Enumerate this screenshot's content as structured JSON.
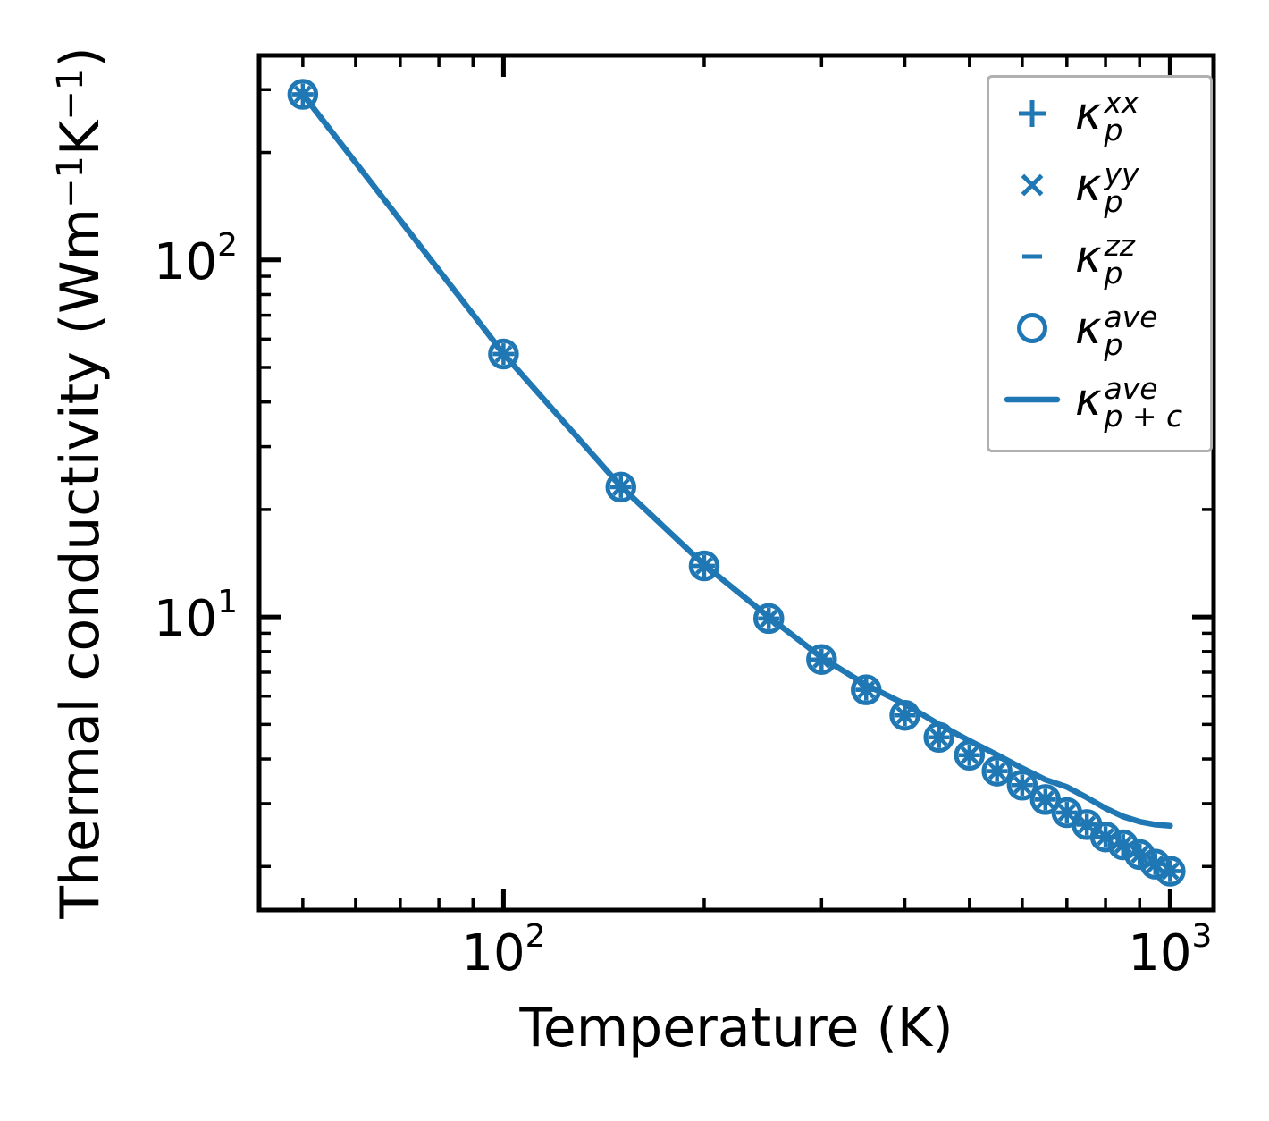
{
  "figure": {
    "background": "#ffffff",
    "accent_color": "#1f77b4",
    "axis_color": "#000000",
    "legend_border_color": "#b0b0b0"
  },
  "axes": {
    "xlabel": "Temperature (K)",
    "ylabel_parts": [
      {
        "t": "Thermal conductivity (Wm"
      },
      {
        "t": "−1",
        "sup": true
      },
      {
        "t": "K"
      },
      {
        "t": "−1",
        "sup": true
      },
      {
        "t": ")"
      }
    ],
    "xscale": "log",
    "yscale": "log",
    "xlim": [
      43,
      1162
    ],
    "ylim": [
      1.51,
      374
    ],
    "x_major_ticks": [
      {
        "value": 100,
        "base": "10",
        "exp": "2"
      },
      {
        "value": 1000,
        "base": "10",
        "exp": "3"
      }
    ],
    "y_major_ticks": [
      {
        "value": 100,
        "base": "10",
        "exp": "2"
      },
      {
        "value": 10,
        "base": "10",
        "exp": "1"
      }
    ]
  },
  "chart_data": {
    "type": "line",
    "title": "",
    "xlabel": "Temperature (K)",
    "ylabel": "Thermal conductivity (W m^-1 K^-1)",
    "xscale": "log",
    "yscale": "log",
    "xlim": [
      43,
      1162
    ],
    "ylim": [
      1.51,
      374
    ],
    "grid": false,
    "legend_position": "upper right",
    "x": [
      50,
      100,
      150,
      200,
      250,
      300,
      350,
      400,
      450,
      500,
      550,
      600,
      650,
      700,
      750,
      800,
      850,
      900,
      950,
      1000
    ],
    "series": [
      {
        "name": "kappa_p_xx",
        "marker": "plus",
        "line": false,
        "values": [
          291,
          54.5,
          23.1,
          13.9,
          9.9,
          7.6,
          6.25,
          5.3,
          4.6,
          4.1,
          3.7,
          3.38,
          3.08,
          2.83,
          2.62,
          2.42,
          2.3,
          2.16,
          2.03,
          1.94
        ]
      },
      {
        "name": "kappa_p_yy",
        "marker": "cross",
        "line": false,
        "values": [
          291,
          54.5,
          23.1,
          13.9,
          9.9,
          7.6,
          6.25,
          5.3,
          4.6,
          4.1,
          3.7,
          3.38,
          3.08,
          2.83,
          2.62,
          2.42,
          2.3,
          2.16,
          2.03,
          1.94
        ]
      },
      {
        "name": "kappa_p_zz",
        "marker": "dash",
        "line": false,
        "values": [
          291,
          54.5,
          23.1,
          13.9,
          9.9,
          7.6,
          6.25,
          5.3,
          4.6,
          4.1,
          3.7,
          3.38,
          3.08,
          2.83,
          2.62,
          2.42,
          2.3,
          2.16,
          2.03,
          1.94
        ]
      },
      {
        "name": "kappa_p_ave",
        "marker": "circle",
        "line": false,
        "values": [
          291,
          54.5,
          23.1,
          13.9,
          9.9,
          7.6,
          6.25,
          5.3,
          4.6,
          4.1,
          3.7,
          3.38,
          3.08,
          2.83,
          2.62,
          2.42,
          2.3,
          2.16,
          2.03,
          1.94
        ]
      },
      {
        "name": "kappa_p_plus_c_ave",
        "marker": "none",
        "line": true,
        "values": [
          291,
          54.6,
          23.2,
          14.0,
          10.0,
          7.7,
          6.45,
          5.7,
          5.0,
          4.5,
          4.11,
          3.77,
          3.5,
          3.34,
          3.12,
          2.91,
          2.76,
          2.67,
          2.62,
          2.6
        ]
      }
    ]
  },
  "legend": {
    "items": [
      {
        "marker": "plus",
        "base": "κ",
        "sub": "p",
        "sup": "xx"
      },
      {
        "marker": "cross",
        "base": "κ",
        "sub": "p",
        "sup": "yy"
      },
      {
        "marker": "dash",
        "base": "κ",
        "sub": "p",
        "sup": "zz"
      },
      {
        "marker": "circle",
        "base": "κ",
        "sub": "p",
        "sup": "ave"
      },
      {
        "marker": "line",
        "base": "κ",
        "sub": "p + c",
        "sup": "ave"
      }
    ]
  }
}
